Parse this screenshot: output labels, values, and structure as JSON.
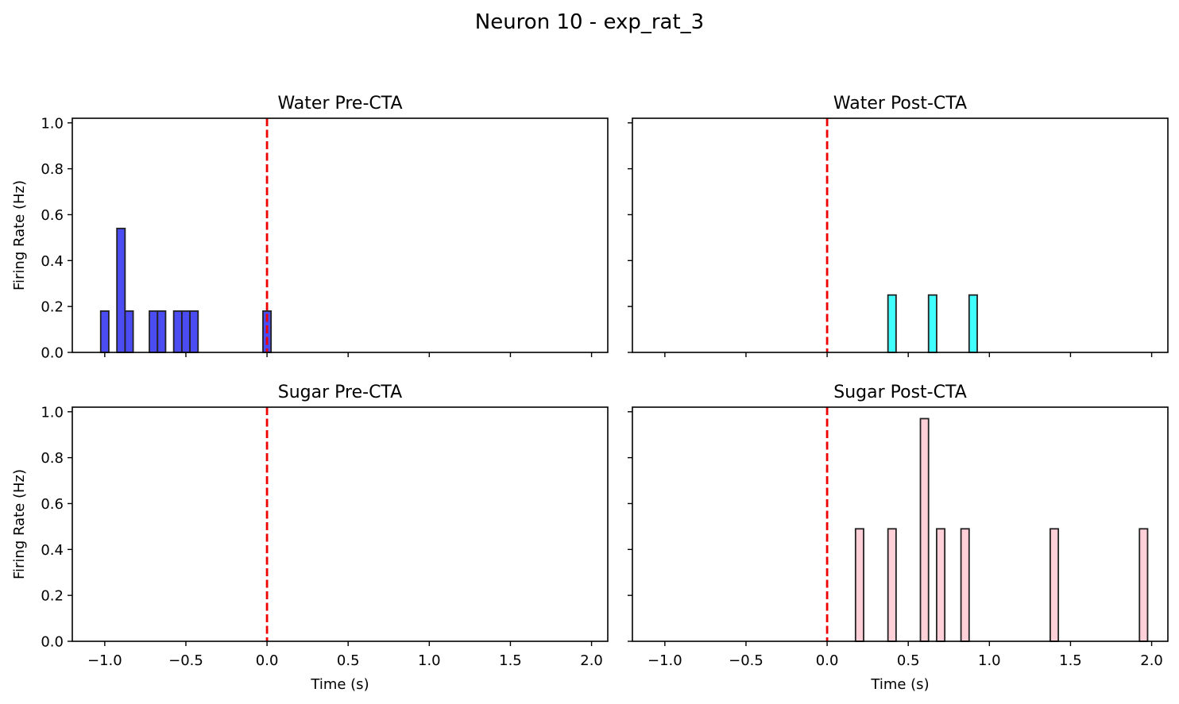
{
  "figure": {
    "title": "Neuron 10 - exp_rat_3"
  },
  "chart_data": [
    {
      "type": "bar",
      "title": "Water Pre-CTA",
      "xlabel": "",
      "ylabel": "Firing Rate (Hz)",
      "xlim": [
        -1.2,
        2.1
      ],
      "ylim": [
        0,
        1.02
      ],
      "bin_width": 0.05,
      "color": "#0000ee",
      "fill_opacity": 0.7,
      "stim_line": 0.0,
      "stim_color": "#ee0000",
      "bins": [
        {
          "x": -1.0,
          "y": 0.18
        },
        {
          "x": -0.9,
          "y": 0.54
        },
        {
          "x": -0.85,
          "y": 0.18
        },
        {
          "x": -0.7,
          "y": 0.18
        },
        {
          "x": -0.65,
          "y": 0.18
        },
        {
          "x": -0.55,
          "y": 0.18
        },
        {
          "x": -0.5,
          "y": 0.18
        },
        {
          "x": -0.45,
          "y": 0.18
        },
        {
          "x": 0.0,
          "y": 0.18
        }
      ]
    },
    {
      "type": "bar",
      "title": "Water Post-CTA",
      "xlabel": "",
      "ylabel": "",
      "xlim": [
        -1.2,
        2.1
      ],
      "ylim": [
        0,
        1.02
      ],
      "bin_width": 0.05,
      "color": "#00ffff",
      "fill_opacity": 0.75,
      "stim_line": 0.0,
      "stim_color": "#ee0000",
      "bins": [
        {
          "x": 0.4,
          "y": 0.25
        },
        {
          "x": 0.65,
          "y": 0.25
        },
        {
          "x": 0.9,
          "y": 0.25
        }
      ]
    },
    {
      "type": "bar",
      "title": "Sugar Pre-CTA",
      "xlabel": "Time (s)",
      "ylabel": "Firing Rate (Hz)",
      "xlim": [
        -1.2,
        2.1
      ],
      "ylim": [
        0,
        1.02
      ],
      "bin_width": 0.05,
      "color": "#ff0000",
      "fill_opacity": 0.7,
      "stim_line": 0.0,
      "stim_color": "#ee0000",
      "bins": []
    },
    {
      "type": "bar",
      "title": "Sugar Post-CTA",
      "xlabel": "Time (s)",
      "ylabel": "",
      "xlim": [
        -1.2,
        2.1
      ],
      "ylim": [
        0,
        1.02
      ],
      "bin_width": 0.05,
      "color": "#ffc0cb",
      "fill_opacity": 0.75,
      "stim_line": 0.0,
      "stim_color": "#ee0000",
      "bins": [
        {
          "x": 0.2,
          "y": 0.49
        },
        {
          "x": 0.4,
          "y": 0.49
        },
        {
          "x": 0.6,
          "y": 0.97
        },
        {
          "x": 0.7,
          "y": 0.49
        },
        {
          "x": 0.85,
          "y": 0.49
        },
        {
          "x": 1.4,
          "y": 0.49
        },
        {
          "x": 1.95,
          "y": 0.49
        }
      ]
    }
  ],
  "axes": {
    "x_ticks": [
      -1.0,
      -0.5,
      0.0,
      0.5,
      1.0,
      1.5,
      2.0
    ],
    "x_tick_labels": [
      "−1.0",
      "−0.5",
      "0.0",
      "0.5",
      "1.0",
      "1.5",
      "2.0"
    ],
    "y_ticks": [
      0.0,
      0.2,
      0.4,
      0.6,
      0.8,
      1.0
    ],
    "y_tick_labels": [
      "0.0",
      "0.2",
      "0.4",
      "0.6",
      "0.8",
      "1.0"
    ]
  }
}
